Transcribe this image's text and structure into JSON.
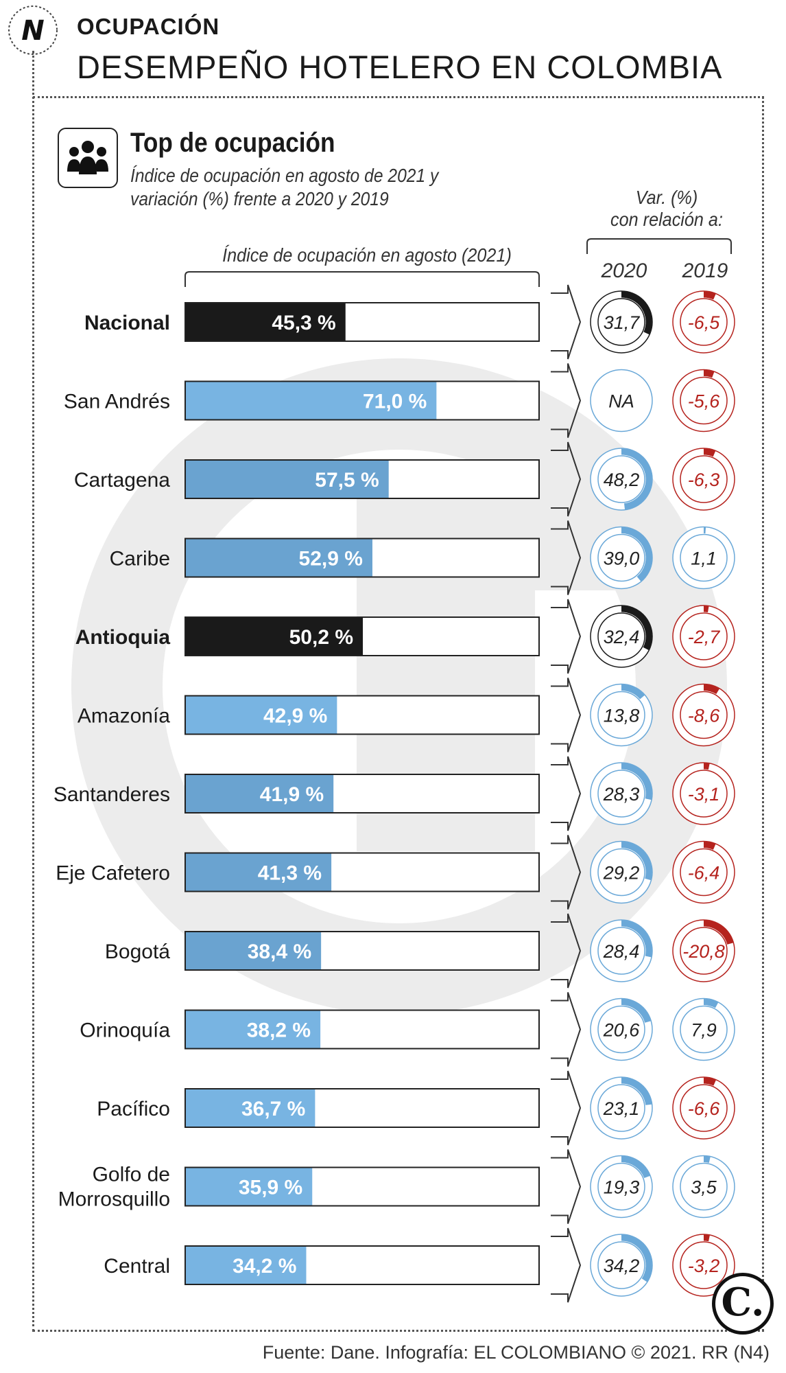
{
  "header": {
    "kicker": "OCUPACIÓN",
    "headline": "DESEMPEÑO HOTELERO EN COLOMBIA",
    "logo_letter": "N"
  },
  "section": {
    "title": "Top de ocupación",
    "subtitle_line1": "Índice de ocupación en agosto de 2021 y",
    "subtitle_line2": "variación (%) frente a 2020 y 2019",
    "var_header_line1": "Var. (%)",
    "var_header_line2": "con relación a:",
    "bar_header": "Índice de ocupación en agosto (2021)",
    "year_a": "2020",
    "year_b": "2019",
    "icon": "people-group-icon"
  },
  "colors": {
    "highlight": "#1a1a1a",
    "bar": "#78b4e2",
    "bar_alt": "#6aa3d0",
    "positive": "#6aa8d8",
    "negative": "#b5231e",
    "watermark": "#ececec"
  },
  "chart_data": {
    "type": "bar",
    "title": "Top de ocupación",
    "xlabel": "Índice de ocupación en agosto (2021)",
    "xlim": [
      0,
      100
    ],
    "categories": [
      "Nacional",
      "San Andrés",
      "Cartagena",
      "Caribe",
      "Antioquia",
      "Amazonía",
      "Santanderes",
      "Eje Cafetero",
      "Bogotá",
      "Orinoquía",
      "Pacífico",
      "Golfo de Morrosquillo",
      "Central"
    ],
    "category_lines": [
      [
        "Nacional"
      ],
      [
        "San Andrés"
      ],
      [
        "Cartagena"
      ],
      [
        "Caribe"
      ],
      [
        "Antioquia"
      ],
      [
        "Amazonía"
      ],
      [
        "Santanderes"
      ],
      [
        "Eje Cafetero"
      ],
      [
        "Bogotá"
      ],
      [
        "Orinoquía"
      ],
      [
        "Pacífico"
      ],
      [
        "Golfo de",
        "Morrosquillo"
      ],
      [
        "Central"
      ]
    ],
    "highlighted": [
      true,
      false,
      false,
      false,
      true,
      false,
      false,
      false,
      false,
      false,
      false,
      false,
      false
    ],
    "values": [
      45.3,
      71.0,
      57.5,
      52.9,
      50.2,
      42.9,
      41.9,
      41.3,
      38.4,
      38.2,
      36.7,
      35.9,
      34.2
    ],
    "value_labels": [
      "45,3 %",
      "71,0 %",
      "57,5 %",
      "52,9 %",
      "50,2 %",
      "42,9 %",
      "41,9 %",
      "41,3 %",
      "38,4 %",
      "38,2 %",
      "36,7 %",
      "35,9 %",
      "34,2 %"
    ],
    "variation": {
      "2020": {
        "values": [
          31.7,
          null,
          48.2,
          39.0,
          32.4,
          13.8,
          28.3,
          29.2,
          28.4,
          20.6,
          23.1,
          19.3,
          34.2
        ],
        "labels": [
          "31,7",
          "NA",
          "48,2",
          "39,0",
          "32,4",
          "13,8",
          "28,3",
          "29,2",
          "28,4",
          "20,6",
          "23,1",
          "19,3",
          "34,2"
        ]
      },
      "2019": {
        "values": [
          -6.5,
          -5.6,
          -6.3,
          1.1,
          -2.7,
          -8.6,
          -3.1,
          -6.4,
          -20.8,
          7.9,
          -6.6,
          3.5,
          -3.2
        ],
        "labels": [
          "-6,5",
          "-5,6",
          "-6,3",
          "1,1",
          "-2,7",
          "-8,6",
          "-3,1",
          "-6,4",
          "-20,8",
          "7,9",
          "-6,6",
          "3,5",
          "-3,2"
        ]
      }
    }
  },
  "footer": {
    "source": "Fuente: Dane. Infografía: EL COLOMBIANO © 2021. RR (N4)",
    "brand_letter": "C."
  }
}
